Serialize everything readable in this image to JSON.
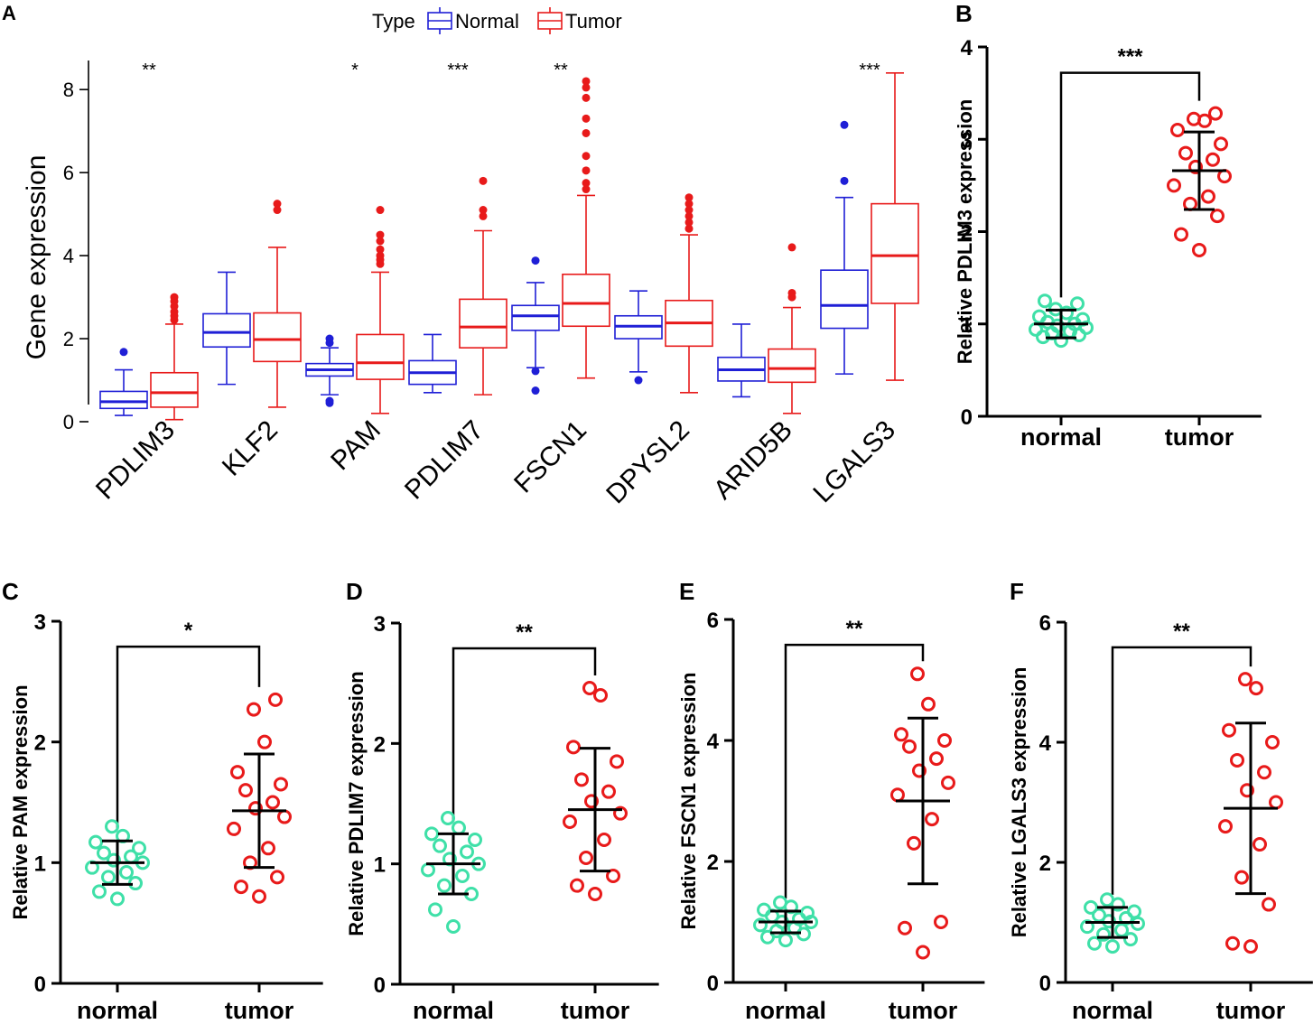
{
  "colors": {
    "normal_box": "#1f1fd6",
    "tumor_box": "#e81a1a",
    "normal_dot": "#3fe0a8",
    "tumor_dot": "#e81a1a",
    "axis": "#000000"
  },
  "chart_data": [
    {
      "id": "A",
      "panel_label": "A",
      "type": "boxplot",
      "ylabel": "Gene expression",
      "ylim": [
        0,
        8.7
      ],
      "yticks": [
        0,
        2,
        4,
        6,
        8
      ],
      "legend": {
        "title": "Type",
        "placement": "top",
        "entries": [
          "Normal",
          "Tumor"
        ]
      },
      "categories": [
        "PDLIM3",
        "KLF2",
        "PAM",
        "PDLIM7",
        "FSCN1",
        "DPYSL2",
        "ARID5B",
        "LGALS3"
      ],
      "significance": [
        "**",
        "",
        "*",
        "***",
        "**",
        "",
        "",
        "***"
      ],
      "series": [
        {
          "name": "Normal",
          "boxes": [
            {
              "min": 0.15,
              "q1": 0.32,
              "median": 0.48,
              "q3": 0.73,
              "max": 1.25,
              "outliers": [
                1.68
              ]
            },
            {
              "min": 0.9,
              "q1": 1.8,
              "median": 2.15,
              "q3": 2.6,
              "max": 3.6,
              "outliers": []
            },
            {
              "min": 0.65,
              "q1": 1.1,
              "median": 1.25,
              "q3": 1.4,
              "max": 1.78,
              "outliers": [
                1.9,
                2.0,
                0.45,
                0.5
              ]
            },
            {
              "min": 0.7,
              "q1": 0.9,
              "median": 1.18,
              "q3": 1.47,
              "max": 2.1,
              "outliers": []
            },
            {
              "min": 1.3,
              "q1": 2.2,
              "median": 2.55,
              "q3": 2.8,
              "max": 3.35,
              "outliers": [
                3.88,
                1.22,
                0.75
              ]
            },
            {
              "min": 1.2,
              "q1": 2.0,
              "median": 2.3,
              "q3": 2.55,
              "max": 3.15,
              "outliers": [
                1.0
              ]
            },
            {
              "min": 0.6,
              "q1": 0.98,
              "median": 1.25,
              "q3": 1.55,
              "max": 2.35,
              "outliers": []
            },
            {
              "min": 1.15,
              "q1": 2.25,
              "median": 2.8,
              "q3": 3.65,
              "max": 5.4,
              "outliers": [
                5.8,
                7.15
              ]
            }
          ]
        },
        {
          "name": "Tumor",
          "boxes": [
            {
              "min": 0.05,
              "q1": 0.35,
              "median": 0.7,
              "q3": 1.18,
              "max": 2.35,
              "outliers": [
                2.45,
                2.55,
                2.65,
                2.78,
                2.9,
                3.0
              ]
            },
            {
              "min": 0.35,
              "q1": 1.45,
              "median": 1.98,
              "q3": 2.62,
              "max": 4.2,
              "outliers": [
                5.1,
                5.25
              ]
            },
            {
              "min": 0.2,
              "q1": 1.02,
              "median": 1.42,
              "q3": 2.1,
              "max": 3.6,
              "outliers": [
                3.8,
                3.9,
                4.0,
                4.15,
                4.35,
                4.5,
                5.1
              ]
            },
            {
              "min": 0.65,
              "q1": 1.78,
              "median": 2.28,
              "q3": 2.95,
              "max": 4.6,
              "outliers": [
                4.95,
                5.1,
                5.8
              ]
            },
            {
              "min": 1.05,
              "q1": 2.3,
              "median": 2.85,
              "q3": 3.55,
              "max": 5.45,
              "outliers": [
                5.6,
                5.75,
                6.05,
                6.4,
                6.95,
                7.3,
                7.8,
                8.05,
                8.2
              ]
            },
            {
              "min": 0.7,
              "q1": 1.82,
              "median": 2.38,
              "q3": 2.92,
              "max": 4.5,
              "outliers": [
                4.65,
                4.8,
                4.95,
                5.1,
                5.25,
                5.4
              ]
            },
            {
              "min": 0.2,
              "q1": 0.95,
              "median": 1.28,
              "q3": 1.75,
              "max": 2.75,
              "outliers": [
                3.0,
                3.1,
                4.2
              ]
            },
            {
              "min": 1.0,
              "q1": 2.85,
              "median": 4.0,
              "q3": 5.25,
              "max": 8.4,
              "outliers": []
            }
          ]
        }
      ]
    },
    {
      "id": "B",
      "panel_label": "B",
      "type": "scatter",
      "ylabel": "Relative PDLIM3 expression",
      "ylim": [
        0,
        4
      ],
      "yticks": [
        0,
        1,
        2,
        3,
        4
      ],
      "categories": [
        "normal",
        "tumor"
      ],
      "significance": "***",
      "groups": [
        {
          "name": "normal",
          "mean": 1.0,
          "sd": 0.15,
          "points": [
            0.82,
            0.86,
            0.88,
            0.9,
            0.92,
            0.94,
            0.96,
            0.98,
            1.0,
            1.02,
            1.05,
            1.08,
            1.12,
            1.16,
            1.22,
            1.25
          ]
        },
        {
          "name": "tumor",
          "mean": 2.66,
          "sd": 0.42,
          "points": [
            1.8,
            1.97,
            2.17,
            2.3,
            2.38,
            2.5,
            2.6,
            2.7,
            2.78,
            2.85,
            2.95,
            3.1,
            3.2,
            3.22,
            3.28
          ]
        }
      ]
    },
    {
      "id": "C",
      "panel_label": "C",
      "type": "scatter",
      "ylabel": "Relative PAM expression",
      "ylim": [
        0,
        3
      ],
      "yticks": [
        0,
        1,
        2,
        3
      ],
      "categories": [
        "normal",
        "tumor"
      ],
      "significance": "*",
      "groups": [
        {
          "name": "normal",
          "mean": 1.0,
          "sd": 0.18,
          "points": [
            0.7,
            0.76,
            0.83,
            0.88,
            0.92,
            0.96,
            1.0,
            1.02,
            1.05,
            1.08,
            1.12,
            1.17,
            1.22,
            1.3
          ]
        },
        {
          "name": "tumor",
          "mean": 1.43,
          "sd": 0.47,
          "points": [
            0.72,
            0.8,
            0.88,
            1.0,
            1.12,
            1.28,
            1.38,
            1.45,
            1.5,
            1.6,
            1.65,
            1.75,
            2.0,
            2.27,
            2.35
          ]
        }
      ]
    },
    {
      "id": "D",
      "panel_label": "D",
      "type": "scatter",
      "ylabel": "Relative PDLIM7 expression",
      "ylim": [
        0,
        3
      ],
      "yticks": [
        0,
        1,
        2,
        3
      ],
      "categories": [
        "normal",
        "tumor"
      ],
      "significance": "**",
      "groups": [
        {
          "name": "normal",
          "mean": 1.0,
          "sd": 0.25,
          "points": [
            0.48,
            0.62,
            0.75,
            0.82,
            0.9,
            0.95,
            1.0,
            1.04,
            1.1,
            1.15,
            1.2,
            1.25,
            1.3,
            1.38
          ]
        },
        {
          "name": "tumor",
          "mean": 1.45,
          "sd": 0.51,
          "points": [
            0.75,
            0.82,
            0.9,
            1.05,
            1.2,
            1.35,
            1.42,
            1.52,
            1.6,
            1.7,
            1.85,
            1.97,
            2.4,
            2.46
          ]
        }
      ]
    },
    {
      "id": "E",
      "panel_label": "E",
      "type": "scatter",
      "ylabel": "Relative FSCN1 expression",
      "ylim": [
        0,
        6
      ],
      "yticks": [
        0,
        2,
        4,
        6
      ],
      "categories": [
        "normal",
        "tumor"
      ],
      "significance": "**",
      "groups": [
        {
          "name": "normal",
          "mean": 1.0,
          "sd": 0.18,
          "points": [
            0.7,
            0.75,
            0.8,
            0.85,
            0.9,
            0.95,
            1.0,
            1.0,
            1.05,
            1.1,
            1.15,
            1.2,
            1.25,
            1.32
          ]
        },
        {
          "name": "tumor",
          "mean": 3.0,
          "sd": 1.37,
          "points": [
            0.5,
            0.9,
            1.0,
            2.3,
            2.7,
            3.1,
            3.3,
            3.5,
            3.7,
            3.9,
            4.0,
            4.1,
            4.6,
            5.1
          ]
        }
      ]
    },
    {
      "id": "F",
      "panel_label": "F",
      "type": "scatter",
      "ylabel": "Relative LGALS3 expression",
      "ylim": [
        0,
        6
      ],
      "yticks": [
        0,
        2,
        4,
        6
      ],
      "categories": [
        "normal",
        "tumor"
      ],
      "significance": "**",
      "groups": [
        {
          "name": "normal",
          "mean": 1.0,
          "sd": 0.25,
          "points": [
            0.6,
            0.65,
            0.72,
            0.8,
            0.87,
            0.93,
            0.98,
            1.02,
            1.07,
            1.12,
            1.18,
            1.25,
            1.3,
            1.38
          ]
        },
        {
          "name": "tumor",
          "mean": 2.9,
          "sd": 1.42,
          "points": [
            0.6,
            0.65,
            1.3,
            1.75,
            2.3,
            2.6,
            3.0,
            3.2,
            3.5,
            3.7,
            4.0,
            4.2,
            4.9,
            5.05
          ]
        }
      ]
    }
  ]
}
